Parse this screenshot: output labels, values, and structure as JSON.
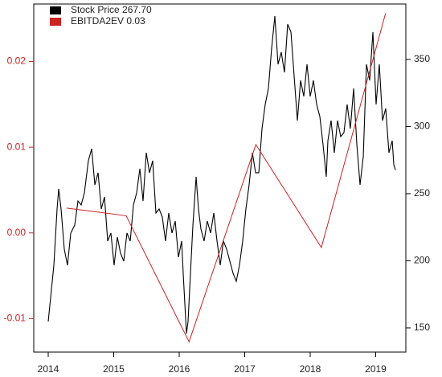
{
  "chart_data": {
    "type": "line",
    "xlim": [
      2013.779,
      2019.46
    ],
    "xticks": [
      2014,
      2015,
      2016,
      2017,
      2018,
      2019
    ],
    "ylim": [
      -0.0139,
      0.0267
    ],
    "yticks": [
      {
        "value": -0.01,
        "label": "-0.01"
      },
      {
        "value": 0,
        "label": "0.00"
      },
      0.01,
      0.02
    ],
    "y2lim": [
      132,
      391.3
    ],
    "y2ticks": [
      150,
      200,
      250,
      300,
      350
    ],
    "legend": "top-left",
    "y_tick_color": "#cc2222",
    "series": [
      {
        "name": "Stock Price 267.70",
        "color": "#000000",
        "axis": "y2",
        "x": [
          2014.0,
          2014.037,
          2014.086,
          2014.135,
          2014.16,
          2014.196,
          2014.245,
          2014.294,
          2014.344,
          2014.405,
          2014.454,
          2014.503,
          2014.552,
          2014.613,
          2014.663,
          2014.712,
          2014.761,
          2014.81,
          2014.859,
          2014.908,
          2014.957,
          2015.006,
          2015.055,
          2015.104,
          2015.153,
          2015.202,
          2015.252,
          2015.301,
          2015.35,
          2015.399,
          2015.448,
          2015.497,
          2015.546,
          2015.595,
          2015.644,
          2015.693,
          2015.742,
          2015.791,
          2015.84,
          2015.89,
          2015.939,
          2015.988,
          2016.037,
          2016.061,
          2016.11,
          2016.135,
          2016.184,
          2016.209,
          2016.258,
          2016.294,
          2016.331,
          2016.38,
          2016.429,
          2016.479,
          2016.528,
          2016.577,
          2016.626,
          2016.675,
          2016.724,
          2016.773,
          2016.822,
          2016.871,
          2016.92,
          2016.969,
          2017.018,
          2017.067,
          2017.117,
          2017.166,
          2017.215,
          2017.264,
          2017.313,
          2017.362,
          2017.411,
          2017.46,
          2017.509,
          2017.558,
          2017.607,
          2017.656,
          2017.706,
          2017.755,
          2017.804,
          2017.853,
          2017.902,
          2017.951,
          2018.0,
          2018.049,
          2018.098,
          2018.147,
          2018.196,
          2018.245,
          2018.27,
          2018.319,
          2018.368,
          2018.417,
          2018.466,
          2018.515,
          2018.564,
          2018.613,
          2018.663,
          2018.712,
          2018.761,
          2018.81,
          2018.859,
          2018.908,
          2018.957,
          2019.006,
          2019.055,
          2019.104,
          2019.153,
          2019.202,
          2019.252,
          2019.276,
          2019.301
        ],
        "values": [
          154.8,
          172.8,
          196.7,
          238.6,
          253.6,
          238.6,
          208.7,
          196.7,
          220.7,
          226.6,
          244.6,
          241.6,
          250.6,
          274.6,
          283.5,
          256.6,
          265.6,
          238.6,
          247.6,
          214.7,
          220.7,
          196.7,
          217.7,
          205.7,
          199.7,
          220.7,
          214.7,
          241.6,
          250.6,
          268.6,
          244.6,
          280.5,
          265.6,
          274.6,
          235.6,
          238.6,
          232.6,
          214.7,
          235.6,
          220.7,
          229.6,
          202.7,
          214.7,
          190.7,
          145.8,
          154.8,
          202.7,
          226.6,
          262.6,
          238.6,
          223.7,
          214.7,
          229.6,
          220.7,
          235.6,
          214.7,
          196.7,
          214.7,
          208.7,
          199.7,
          190.7,
          184.7,
          196.7,
          214.7,
          238.6,
          256.6,
          280.5,
          265.6,
          265.6,
          298.5,
          316.5,
          328.4,
          358.4,
          382.3,
          346.4,
          355.4,
          340.4,
          376.3,
          370.4,
          337.4,
          304.5,
          334.4,
          322.5,
          346.4,
          322.5,
          334.4,
          316.5,
          307.5,
          286.5,
          262.6,
          289.5,
          304.5,
          280.5,
          304.5,
          292.5,
          295.5,
          316.5,
          298.5,
          328.4,
          286.5,
          256.6,
          277.6,
          346.4,
          334.4,
          370.4,
          316.5,
          346.4,
          304.5,
          313.5,
          280.5,
          289.5,
          271.6,
          267.7
        ]
      },
      {
        "name": "EBITDA2EV  0.03",
        "color": "#cc2222",
        "axis": "y",
        "x": [
          2014.28,
          2015.19,
          2016.15,
          2017.17,
          2018.17,
          2019.15
        ],
        "values": [
          0.0029,
          0.002,
          -0.0127,
          0.0103,
          -0.0017,
          0.0256
        ]
      }
    ]
  }
}
